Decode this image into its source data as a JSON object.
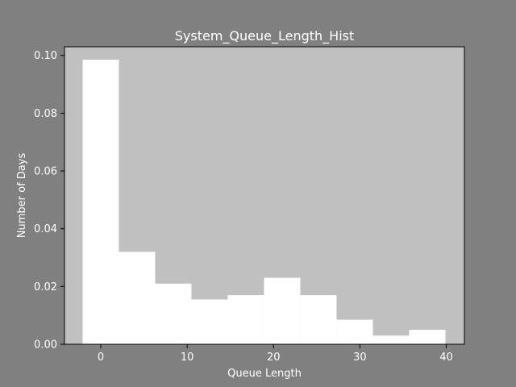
{
  "chart_data": {
    "type": "bar",
    "title": "System_Queue_Length_Hist",
    "xlabel": "Queue Length",
    "ylabel": "Number of Days",
    "xlim": [
      -4.2,
      42.1
    ],
    "ylim": [
      0,
      0.103
    ],
    "xticks": [
      0,
      10,
      20,
      30,
      40
    ],
    "yticks": [
      0.0,
      0.02,
      0.04,
      0.06,
      0.08,
      0.1
    ],
    "ytick_labels": [
      "0.00",
      "0.02",
      "0.04",
      "0.06",
      "0.08",
      "0.10"
    ],
    "grid": false,
    "bins": [
      {
        "x0": -2.1,
        "x1": 2.1,
        "value": 0.0985
      },
      {
        "x0": 2.1,
        "x1": 6.3,
        "value": 0.032
      },
      {
        "x0": 6.3,
        "x1": 10.5,
        "value": 0.021
      },
      {
        "x0": 10.5,
        "x1": 14.7,
        "value": 0.0155
      },
      {
        "x0": 14.7,
        "x1": 18.9,
        "value": 0.017
      },
      {
        "x0": 18.9,
        "x1": 23.1,
        "value": 0.023
      },
      {
        "x0": 23.1,
        "x1": 27.3,
        "value": 0.017
      },
      {
        "x0": 27.3,
        "x1": 31.5,
        "value": 0.0085
      },
      {
        "x0": 31.5,
        "x1": 35.7,
        "value": 0.003
      },
      {
        "x0": 35.7,
        "x1": 39.9,
        "value": 0.005
      }
    ],
    "colors": {
      "figure_bg": "#808080",
      "plot_bg": "#c0c0c0",
      "bar": "#ffffff",
      "text": "#ffffff",
      "axis": "#000000"
    }
  }
}
